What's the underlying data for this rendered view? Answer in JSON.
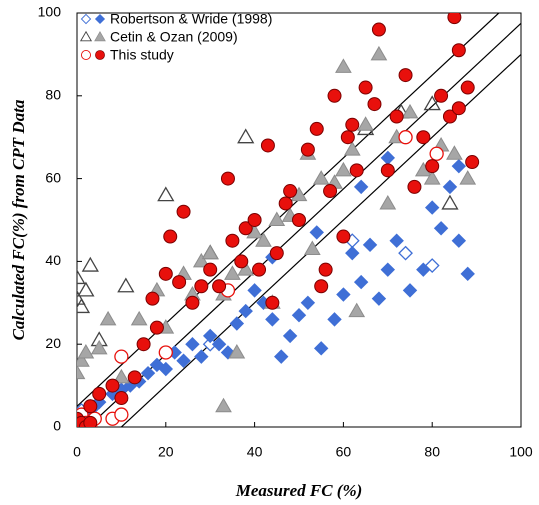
{
  "chart_data": {
    "type": "scatter",
    "x_label": "Measured FC (%)",
    "y_label": "Calculated FC(%) from CPT Data",
    "xlim": [
      0,
      100
    ],
    "ylim": [
      0,
      100
    ],
    "xticks": [
      0,
      20,
      40,
      60,
      80,
      100
    ],
    "yticks": [
      0,
      20,
      40,
      60,
      80,
      100
    ],
    "grid": false,
    "legend": "upper left",
    "reference_lines": [
      [
        0,
        5,
        95,
        100
      ],
      [
        2.5,
        0,
        100,
        97.5
      ],
      [
        10,
        0,
        100,
        90
      ]
    ],
    "series": [
      {
        "name": "Robertson & Wride (1998)",
        "color": "#3f6fd6",
        "marker": "diamond",
        "x": [
          2,
          4,
          5,
          8,
          10,
          12,
          14,
          16,
          18,
          20,
          22,
          24,
          26,
          28,
          30,
          32,
          34,
          36,
          38,
          40,
          42,
          44,
          46,
          48,
          50,
          52,
          55,
          58,
          60,
          62,
          64,
          66,
          68,
          70,
          72,
          75,
          78,
          80,
          82,
          84,
          86,
          88,
          86,
          70,
          54,
          64,
          44
        ],
        "y": [
          3,
          5,
          6,
          8,
          9,
          10,
          11,
          13,
          15,
          14,
          18,
          16,
          20,
          17,
          22,
          20,
          18,
          25,
          28,
          33,
          30,
          26,
          17,
          22,
          27,
          30,
          19,
          26,
          32,
          42,
          35,
          44,
          31,
          38,
          45,
          33,
          38,
          53,
          48,
          58,
          45,
          37,
          63,
          65,
          47,
          58,
          41
        ],
        "open_x": [
          0,
          1,
          2,
          3,
          74,
          80,
          62,
          30
        ],
        "open_y": [
          1,
          4,
          2,
          5,
          42,
          39,
          45,
          20
        ]
      },
      {
        "name": "Cetin & Ozan (2009)",
        "color": "#a6a6a6",
        "marker": "triangle",
        "x": [
          0,
          1,
          2,
          5,
          7,
          10,
          14,
          18,
          20,
          24,
          26,
          28,
          30,
          33,
          35,
          38,
          40,
          42,
          45,
          48,
          50,
          53,
          55,
          58,
          60,
          62,
          63,
          65,
          68,
          70,
          72,
          75,
          78,
          80,
          82,
          85,
          88,
          60,
          52,
          33,
          44,
          36
        ],
        "y": [
          13,
          16,
          18,
          19,
          26,
          12,
          26,
          33,
          24,
          37,
          32,
          40,
          42,
          5,
          37,
          38,
          47,
          45,
          50,
          51,
          56,
          43,
          60,
          59,
          62,
          67,
          28,
          73,
          90,
          54,
          70,
          76,
          62,
          60,
          68,
          66,
          60,
          87,
          66,
          32,
          30,
          18
        ],
        "open_x": [
          0,
          0,
          1,
          2,
          3,
          5,
          11,
          20,
          30,
          65,
          73,
          80,
          84,
          38
        ],
        "open_y": [
          31,
          36,
          29,
          33,
          39,
          21,
          34,
          56,
          42,
          72,
          76,
          78,
          54,
          70
        ]
      },
      {
        "name": "This study",
        "color": "#e8100c",
        "marker": "circle",
        "x": [
          0,
          1,
          2,
          3,
          3,
          5,
          8,
          10,
          13,
          15,
          17,
          18,
          20,
          21,
          23,
          24,
          26,
          28,
          30,
          32,
          34,
          35,
          37,
          38,
          40,
          41,
          43,
          45,
          47,
          48,
          50,
          52,
          54,
          55,
          57,
          58,
          60,
          61,
          62,
          63,
          65,
          67,
          68,
          70,
          72,
          74,
          76,
          78,
          80,
          82,
          84,
          85,
          86,
          86,
          88,
          89,
          56,
          44
        ],
        "y": [
          2,
          1,
          0,
          1,
          5,
          8,
          10,
          7,
          12,
          20,
          31,
          24,
          37,
          46,
          35,
          52,
          30,
          34,
          38,
          34,
          60,
          45,
          40,
          48,
          50,
          38,
          68,
          42,
          54,
          57,
          50,
          67,
          72,
          34,
          57,
          80,
          46,
          70,
          73,
          62,
          82,
          78,
          96,
          62,
          75,
          85,
          58,
          70,
          63,
          80,
          75,
          99,
          91,
          77,
          82,
          64,
          38,
          30
        ],
        "open_x": [
          0,
          1,
          2,
          3,
          4,
          8,
          10,
          10,
          20,
          74,
          81,
          34
        ],
        "open_y": [
          0,
          3,
          1,
          0,
          2,
          2,
          3,
          17,
          18,
          70,
          66,
          33
        ]
      }
    ]
  }
}
